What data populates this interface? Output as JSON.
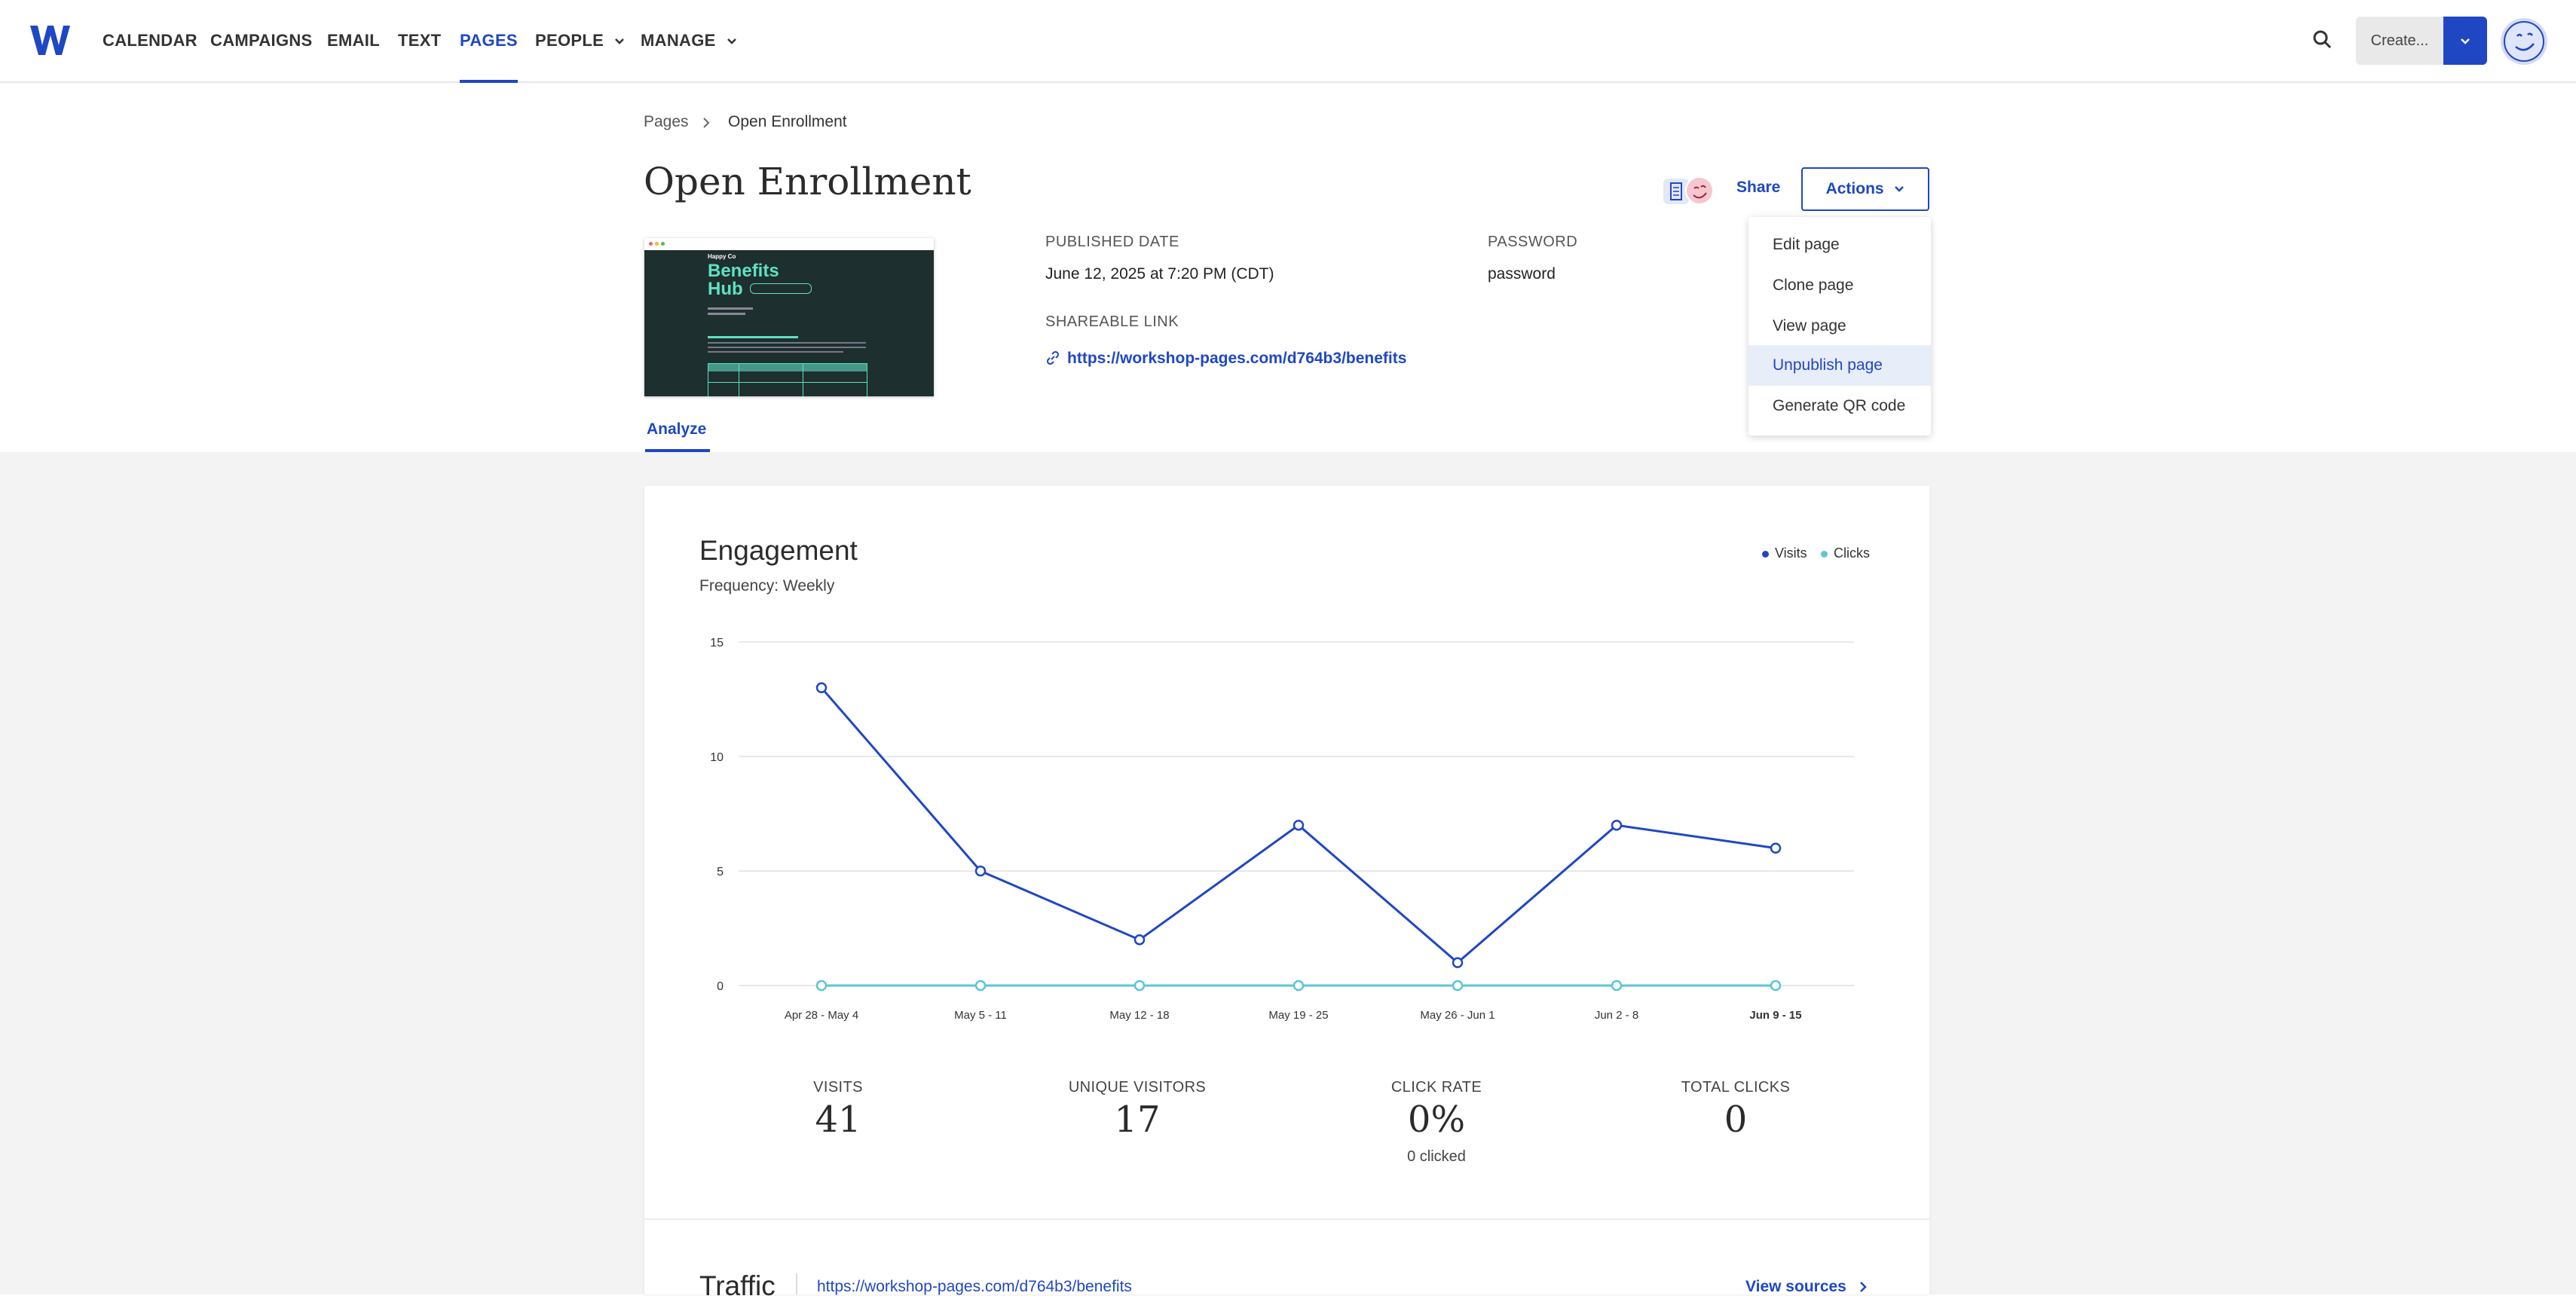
{
  "nav": {
    "items": [
      {
        "label": "CALENDAR"
      },
      {
        "label": "CAMPAIGNS"
      },
      {
        "label": "EMAIL"
      },
      {
        "label": "TEXT"
      },
      {
        "label": "PAGES"
      },
      {
        "label": "PEOPLE"
      },
      {
        "label": "MANAGE"
      }
    ],
    "active": "PAGES",
    "create_label": "Create..."
  },
  "breadcrumb": {
    "root": "Pages",
    "current": "Open Enrollment"
  },
  "page": {
    "title": "Open Enrollment",
    "thumbnail": {
      "brand": "Happy Co",
      "title_line1": "Benefits",
      "title_line2": "Hub"
    },
    "published_label": "PUBLISHED DATE",
    "published_value": "June 12, 2025 at 7:20 PM (CDT)",
    "password_label": "PASSWORD",
    "password_value": "password",
    "link_label": "SHAREABLE LINK",
    "link_value": "https://workshop-pages.com/d764b3/benefits"
  },
  "header_actions": {
    "share": "Share",
    "actions": "Actions"
  },
  "actions_menu": [
    {
      "label": "Edit page"
    },
    {
      "label": "Clone page"
    },
    {
      "label": "View page"
    },
    {
      "label": "Unpublish page",
      "highlighted": true
    },
    {
      "label": "Generate QR code"
    }
  ],
  "tabs": {
    "analyze": "Analyze"
  },
  "engagement": {
    "title": "Engagement",
    "frequency": "Frequency: Weekly",
    "legend": [
      {
        "name": "Visits",
        "color": "#1f47c4"
      },
      {
        "name": "Clicks",
        "color": "#5bc6d6"
      }
    ]
  },
  "chart_data": {
    "type": "line",
    "categories": [
      "Apr 28 - May 4",
      "May 5 - 11",
      "May 12 - 18",
      "May 19 - 25",
      "May 26 - Jun 1",
      "Jun 2 - 8",
      "Jun 9 - 15"
    ],
    "series": [
      {
        "name": "Visits",
        "color": "#1f47c4",
        "values": [
          13,
          5,
          2,
          7,
          1,
          7,
          6
        ]
      },
      {
        "name": "Clicks",
        "color": "#5bc6d6",
        "values": [
          0,
          0,
          0,
          0,
          0,
          0,
          0
        ]
      }
    ],
    "yticks": [
      "0",
      "5",
      "10",
      "15"
    ],
    "ylim": [
      0,
      15
    ],
    "grid": true,
    "legend_position": "top-right",
    "title": "",
    "xlabel": "",
    "ylabel": ""
  },
  "stats": [
    {
      "label": "VISITS",
      "value": "41",
      "sub": ""
    },
    {
      "label": "UNIQUE VISITORS",
      "value": "17",
      "sub": ""
    },
    {
      "label": "CLICK RATE",
      "value": "0%",
      "sub": "0 clicked"
    },
    {
      "label": "TOTAL CLICKS",
      "value": "0",
      "sub": ""
    }
  ],
  "traffic": {
    "title": "Traffic",
    "link": "https://workshop-pages.com/d764b3/benefits",
    "view_sources": "View sources"
  }
}
